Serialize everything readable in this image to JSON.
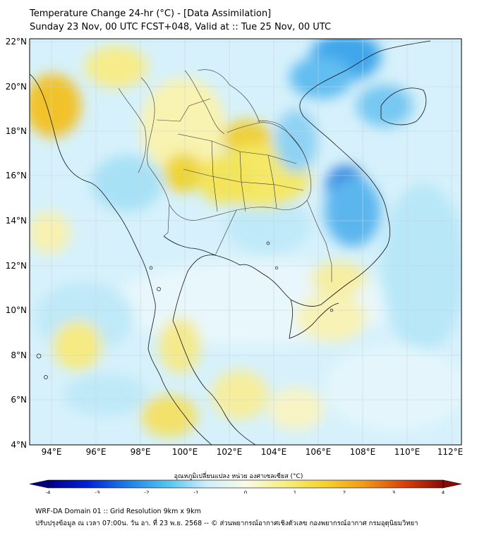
{
  "header": {
    "title": "Temperature Change 24-hr (°C) - [Data Assimilation]",
    "subtitle": "Sunday 23 Nov, 00 UTC FCST+048, Valid at :: Tue 25 Nov, 00 UTC"
  },
  "map": {
    "lat_labels": [
      "22°N",
      "20°N",
      "18°N",
      "16°N",
      "14°N",
      "12°N",
      "10°N",
      "8°N",
      "6°N",
      "4°N"
    ],
    "lon_labels": [
      "94°E",
      "96°E",
      "98°E",
      "100°E",
      "102°E",
      "104°E",
      "106°E",
      "108°E",
      "110°E",
      "112°E"
    ]
  },
  "colorbar": {
    "title": "อุณหภูมิเปลี่ยนแปลง หน่วย องศาเซลเซียส (°C)",
    "ticks": [
      "-4",
      "-3",
      "-2",
      "-1",
      "0",
      "1",
      "2",
      "3",
      "4"
    ],
    "colors": [
      "#000080",
      "#0022d8",
      "#1f7de6",
      "#4fc3f0",
      "#cdeefa",
      "#fafae8",
      "#f6ef80",
      "#f6d22e",
      "#f09a1a",
      "#d8430c",
      "#8a0a05"
    ]
  },
  "footer": {
    "line1": "WRF-DA Domain 01 :: Grid Resolution 9km x 9km",
    "line2": "ปรับปรุงข้อมูล ณ เวลา 07:00น. วัน อา. ที่ 23 พ.ย. 2568 -- © ส่วนพยากรณ์อากาศเชิงตัวเลข กองพยากรณ์อากาศ กรมอุตุนิยมวิทยา"
  }
}
